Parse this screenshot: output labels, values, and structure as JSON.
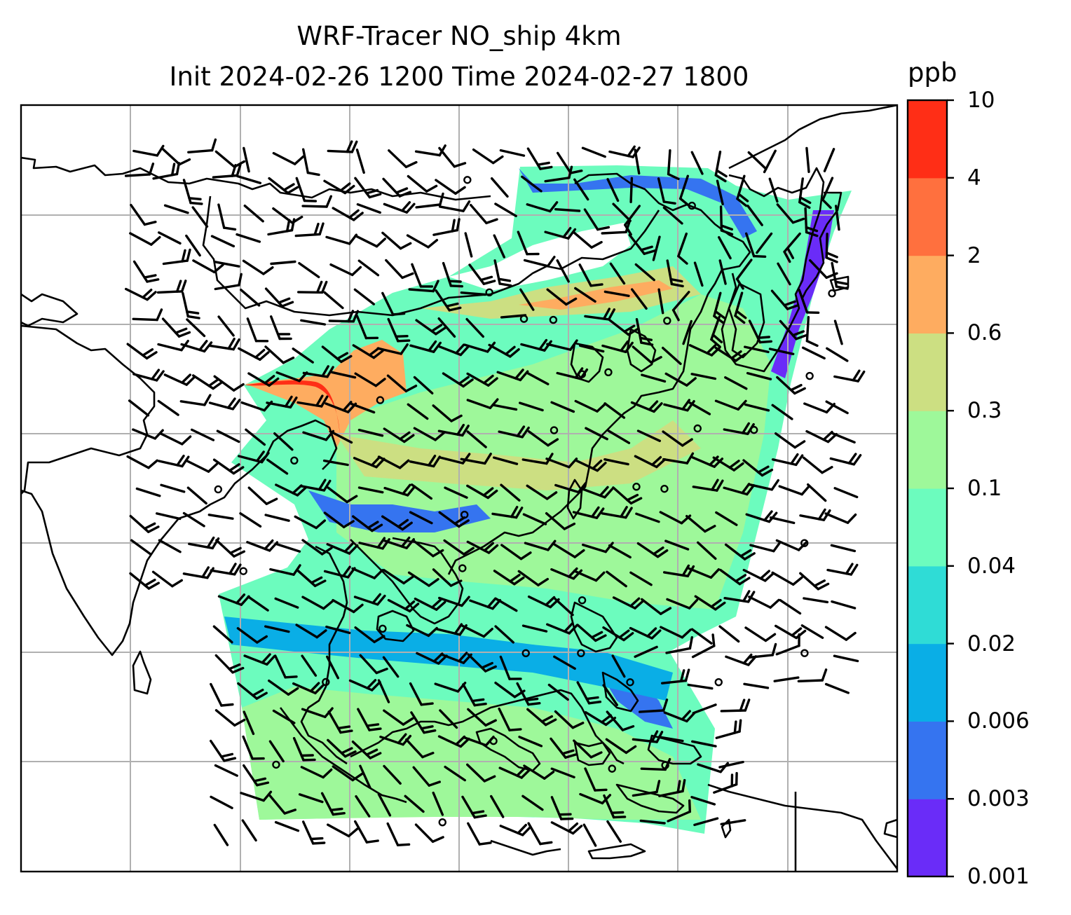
{
  "title_line1": "WRF-Tracer NO_ship 4km",
  "title_line2": "Init 2024-02-26 1200 Time 2024-02-27 1800",
  "colorbar": {
    "unit": "ppb",
    "levels": [
      "0.001",
      "0.003",
      "0.006",
      "0.02",
      "0.04",
      "0.1",
      "0.3",
      "0.6",
      "2",
      "4",
      "10"
    ],
    "colors": [
      "#6a2cf8",
      "#3574f0",
      "#0aaee6",
      "#2fdcd6",
      "#6cfcbe",
      "#9ef89a",
      "#ccdf82",
      "#feac60",
      "#ff703e",
      "#ff2e16"
    ]
  },
  "map": {
    "coastline_color": "#000000",
    "gridline_color": "#b0b0b0",
    "barb_color": "#000000"
  }
}
